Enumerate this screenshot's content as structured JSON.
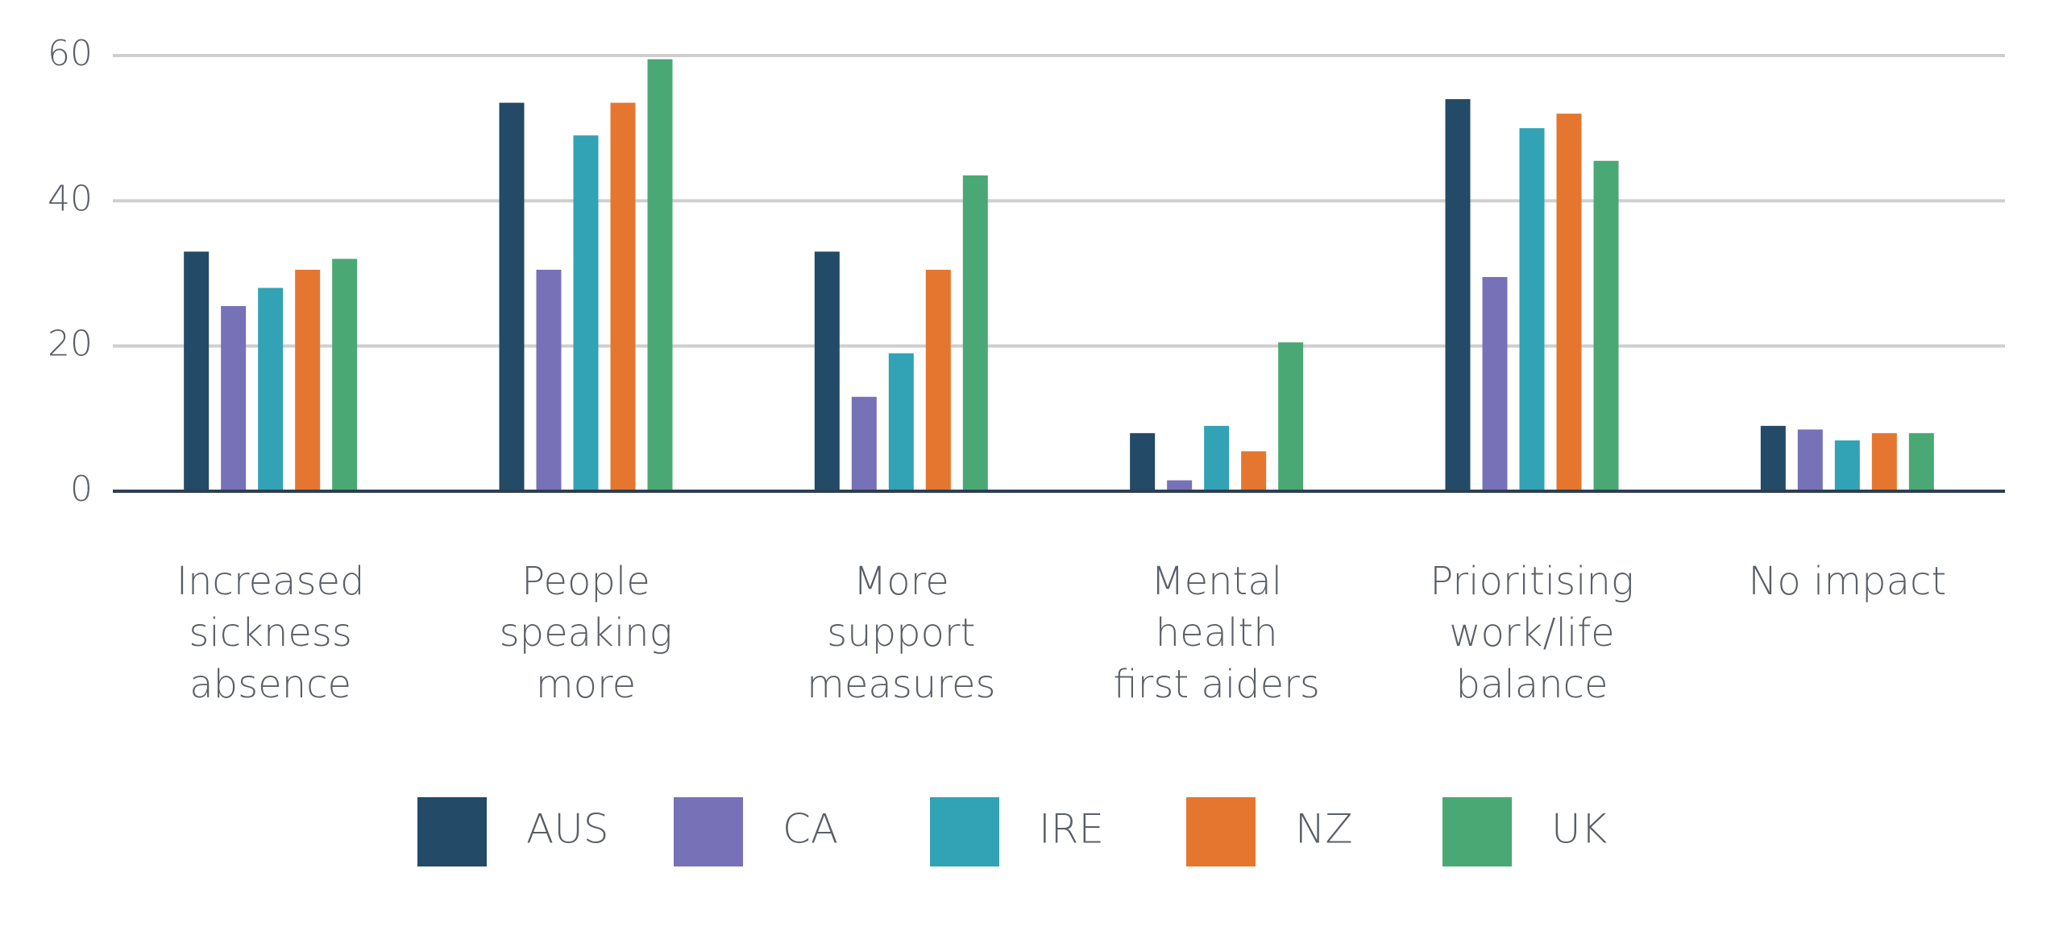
{
  "chart_data": {
    "type": "bar",
    "categories": [
      "Increased\nsickness\nabsence",
      "People\nspeaking\nmore",
      "More\nsupport\nmeasures",
      "Mental\nhealth\nfirst aiders",
      "Prioritising\nwork/life\nbalance",
      "No impact"
    ],
    "series": [
      {
        "name": "AUS",
        "color": "#234a66",
        "values": [
          33,
          53.5,
          33,
          8,
          54,
          9
        ]
      },
      {
        "name": "CA",
        "color": "#7771b8",
        "values": [
          25.5,
          30.5,
          13,
          1.5,
          29.5,
          8.5
        ]
      },
      {
        "name": "IRE",
        "color": "#32a2b5",
        "values": [
          28,
          49,
          19,
          9,
          50,
          7
        ]
      },
      {
        "name": "NZ",
        "color": "#e5762f",
        "values": [
          30.5,
          53.5,
          30.5,
          5.5,
          52,
          8
        ]
      },
      {
        "name": "UK",
        "color": "#4aa874",
        "values": [
          32,
          59.5,
          43.5,
          20.5,
          45.5,
          8
        ]
      }
    ],
    "ylim": [
      0,
      60
    ],
    "yticks": [
      0,
      20,
      40,
      60
    ],
    "grid": true,
    "legend": "bottom"
  }
}
